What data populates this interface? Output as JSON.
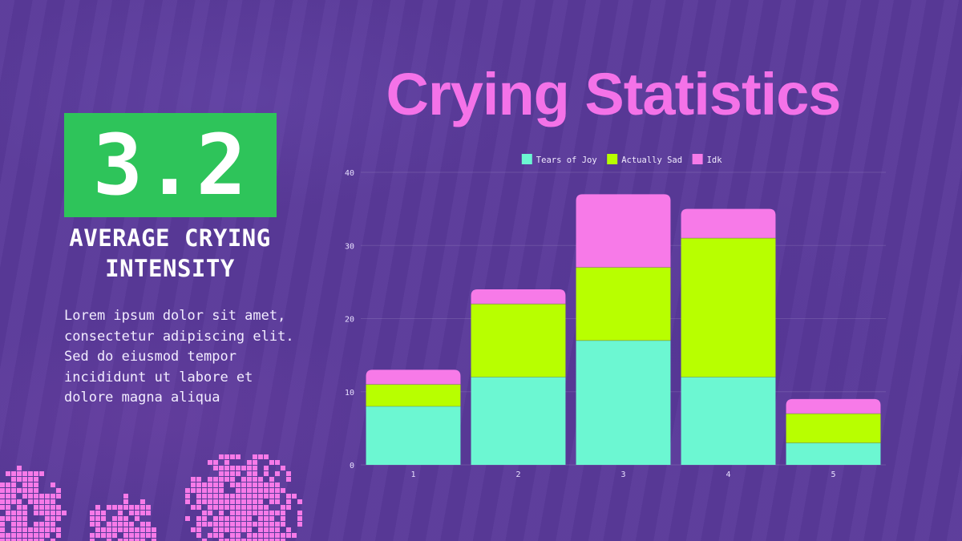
{
  "stat": {
    "value": "3.2",
    "label_line1": "AVERAGE CRYING",
    "label_line2": "INTENSITY"
  },
  "description": "Lorem ipsum dolor sit amet, consectetur adipiscing elit. Sed do eiusmod tempor incididunt ut labore et dolore magna aliqua",
  "colors": {
    "background": "#5a3a9a",
    "stat_box": "#2ec45a",
    "title": "#f472e8",
    "tears_of_joy": "#6cf7d2",
    "actually_sad": "#b8ff00",
    "idk": "#f77ae8"
  },
  "chart_data": {
    "type": "bar",
    "stacked": true,
    "title": "Crying Statistics",
    "xlabel": "",
    "ylabel": "",
    "categories": [
      "1",
      "2",
      "3",
      "4",
      "5"
    ],
    "ylim": [
      0,
      40
    ],
    "yticks": [
      0,
      10,
      20,
      30,
      40
    ],
    "grid": true,
    "legend": "top-center",
    "series": [
      {
        "name": "Tears of Joy",
        "color": "#6cf7d2",
        "values": [
          8,
          12,
          17,
          12,
          3
        ]
      },
      {
        "name": "Actually Sad",
        "color": "#b8ff00",
        "values": [
          3,
          10,
          10,
          19,
          4
        ]
      },
      {
        "name": "Idk",
        "color": "#f77ae8",
        "values": [
          2,
          2,
          10,
          4,
          2
        ]
      }
    ]
  }
}
